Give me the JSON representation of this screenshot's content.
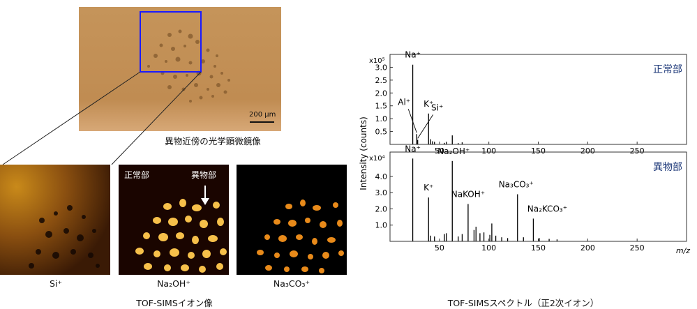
{
  "micro": {
    "scalebar_label": "200 µm",
    "caption": "異物近傍の光学顕微鏡像"
  },
  "images": {
    "panels": [
      {
        "sub": "Si⁺"
      },
      {
        "sub": "Na₂OH⁺",
        "label_normal": "正常部",
        "label_foreign": "異物部"
      },
      {
        "sub": "Na₃CO₃⁺"
      }
    ],
    "caption": "TOF-SIMSイオン像"
  },
  "spectrum": {
    "caption": "TOF-SIMSスペクトル（正2次イオン）",
    "colors": {
      "panel_label": "#1f3a7a",
      "marker_box": "#1a1aff",
      "micro_bg": "#c7914f"
    }
  },
  "chart_data": [
    {
      "type": "bar",
      "title": "正常部",
      "ylabel": "Intensity (counts)",
      "y_multiplier": "x10⁵",
      "x": [
        23,
        27,
        28,
        39,
        41,
        43,
        45,
        55,
        57,
        63,
        69,
        73
      ],
      "values": [
        3.1,
        0.4,
        0.18,
        1.2,
        0.2,
        0.12,
        0.1,
        0.06,
        0.1,
        0.35,
        0.05,
        0.08
      ],
      "xlim": [
        0,
        300
      ],
      "ylim": [
        0,
        3.5
      ],
      "xticks": [
        "50",
        "100",
        "150",
        "200",
        "250"
      ],
      "yticks": [
        "0.5",
        "1.0",
        "1.5",
        "2.0",
        "2.5",
        "3.0"
      ],
      "annotations": [
        {
          "text": "Na⁺",
          "x": 23
        },
        {
          "text": "Al⁺",
          "x": 27
        },
        {
          "text": "K⁺",
          "x": 39
        },
        {
          "text": "Si⁺",
          "x": 28
        }
      ]
    },
    {
      "type": "bar",
      "title": "異物部",
      "ylabel": "Intensity (counts)",
      "y_multiplier": "x10⁴",
      "x": [
        23,
        39,
        41,
        45,
        55,
        57,
        63,
        69,
        73,
        79,
        85,
        87,
        91,
        95,
        101,
        103,
        107,
        113,
        119,
        129,
        135,
        145,
        151,
        161,
        169
      ],
      "values": [
        5.1,
        2.7,
        0.35,
        0.3,
        0.45,
        0.5,
        4.95,
        0.3,
        0.45,
        2.3,
        0.7,
        0.9,
        0.5,
        0.55,
        0.4,
        1.1,
        0.35,
        0.25,
        0.2,
        2.9,
        0.25,
        1.4,
        0.2,
        0.15,
        0.12
      ],
      "xlim": [
        0,
        300
      ],
      "ylim": [
        0,
        5.5
      ],
      "xticks": [
        "50",
        "100",
        "150",
        "200",
        "250"
      ],
      "yticks": [
        "1.0",
        "2.0",
        "3.0",
        "4.0"
      ],
      "xlabel": "m/z",
      "annotations": [
        {
          "text": "Na⁺",
          "x": 23
        },
        {
          "text": "Na₂OH⁺",
          "x": 63
        },
        {
          "text": "K⁺",
          "x": 39
        },
        {
          "text": "NaKOH⁺",
          "x": 79
        },
        {
          "text": "Na₃CO₃⁺",
          "x": 129
        },
        {
          "text": "Na₂KCO₃⁺",
          "x": 145
        }
      ]
    }
  ]
}
